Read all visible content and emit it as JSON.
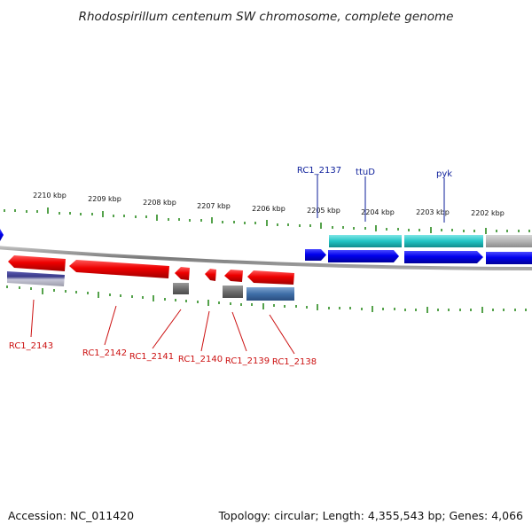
{
  "title": "Rhodospirillum centenum SW chromosome, complete genome",
  "footer": {
    "accession": "Accession: NC_011420",
    "summary": "Topology: circular; Length: 4,355,543 bp; Genes: 4,066"
  },
  "colors": {
    "background": "#ffffff",
    "backbone": "#8a8a8a",
    "tick": "#2a8a1e",
    "forward_gene": "#0000ee",
    "forward_feature": "#22c4c4",
    "reverse_gene": "#ee0000",
    "reverse_feature_gray": "#6e6e6e",
    "reverse_feature_blue": "#3f6fa8",
    "reverse_feature_navy": "#3a3a8a",
    "label_blue": "#0b1d9a",
    "label_red": "#cc1111"
  },
  "scale_ticks": [
    "2210 kbp",
    "2209 kbp",
    "2208 kbp",
    "2207 kbp",
    "2206 kbp",
    "2205 kbp",
    "2204 kbp",
    "2203 kbp",
    "2202 kbp"
  ],
  "forward_labels": [
    "RC1_2137",
    "ttuD",
    "pyk"
  ],
  "reverse_labels": [
    "RC1_2143",
    "RC1_2142",
    "RC1_2141",
    "RC1_2140",
    "RC1_2139",
    "RC1_2138"
  ]
}
